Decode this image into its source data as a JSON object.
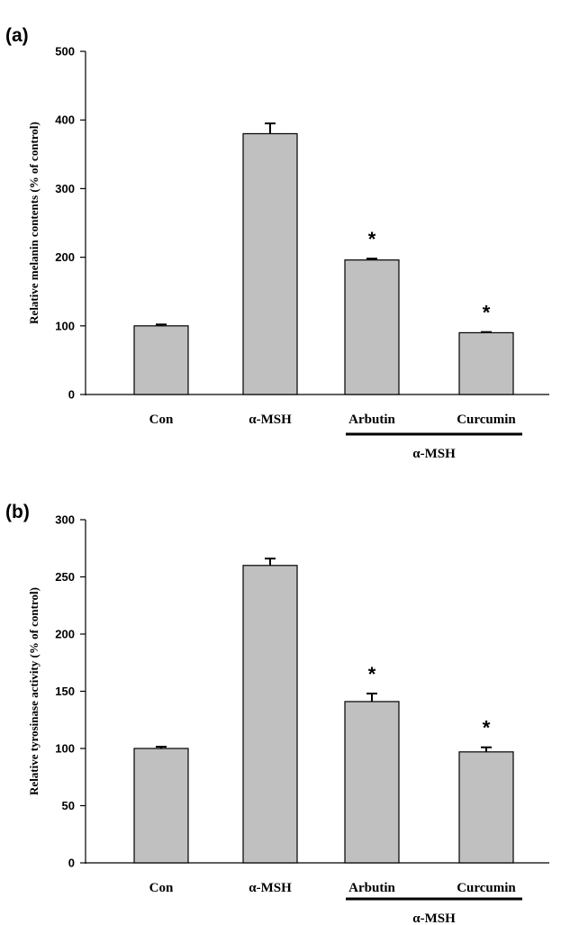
{
  "chart_data": [
    {
      "panel": "(a)",
      "type": "bar",
      "categories": [
        "Con",
        "α-MSH",
        "Arbutin",
        "Curcumin"
      ],
      "values": [
        100,
        380,
        196,
        90
      ],
      "errors": [
        2,
        15,
        2,
        1
      ],
      "significance": [
        "",
        "",
        "*",
        "*"
      ],
      "group_label": "α-MSH",
      "group_span": [
        2,
        3
      ],
      "ylabel": "Relative melanin contents (% of control)",
      "xlabel": "",
      "ylim": [
        0,
        500
      ],
      "yticks": [
        0,
        100,
        200,
        300,
        400,
        500
      ],
      "bar_color": "#c0c0c0"
    },
    {
      "panel": "(b)",
      "type": "bar",
      "categories": [
        "Con",
        "α-MSH",
        "Arbutin",
        "Curcumin"
      ],
      "values": [
        100,
        260,
        141,
        97
      ],
      "errors": [
        1.5,
        6,
        7,
        4
      ],
      "significance": [
        "",
        "",
        "*",
        "*"
      ],
      "group_label": "α-MSH",
      "group_span": [
        2,
        3
      ],
      "ylabel": "Relative tyrosinase activity (% of control)",
      "xlabel": "",
      "ylim": [
        0,
        300
      ],
      "yticks": [
        0,
        50,
        100,
        150,
        200,
        250,
        300
      ],
      "bar_color": "#c0c0c0"
    }
  ]
}
